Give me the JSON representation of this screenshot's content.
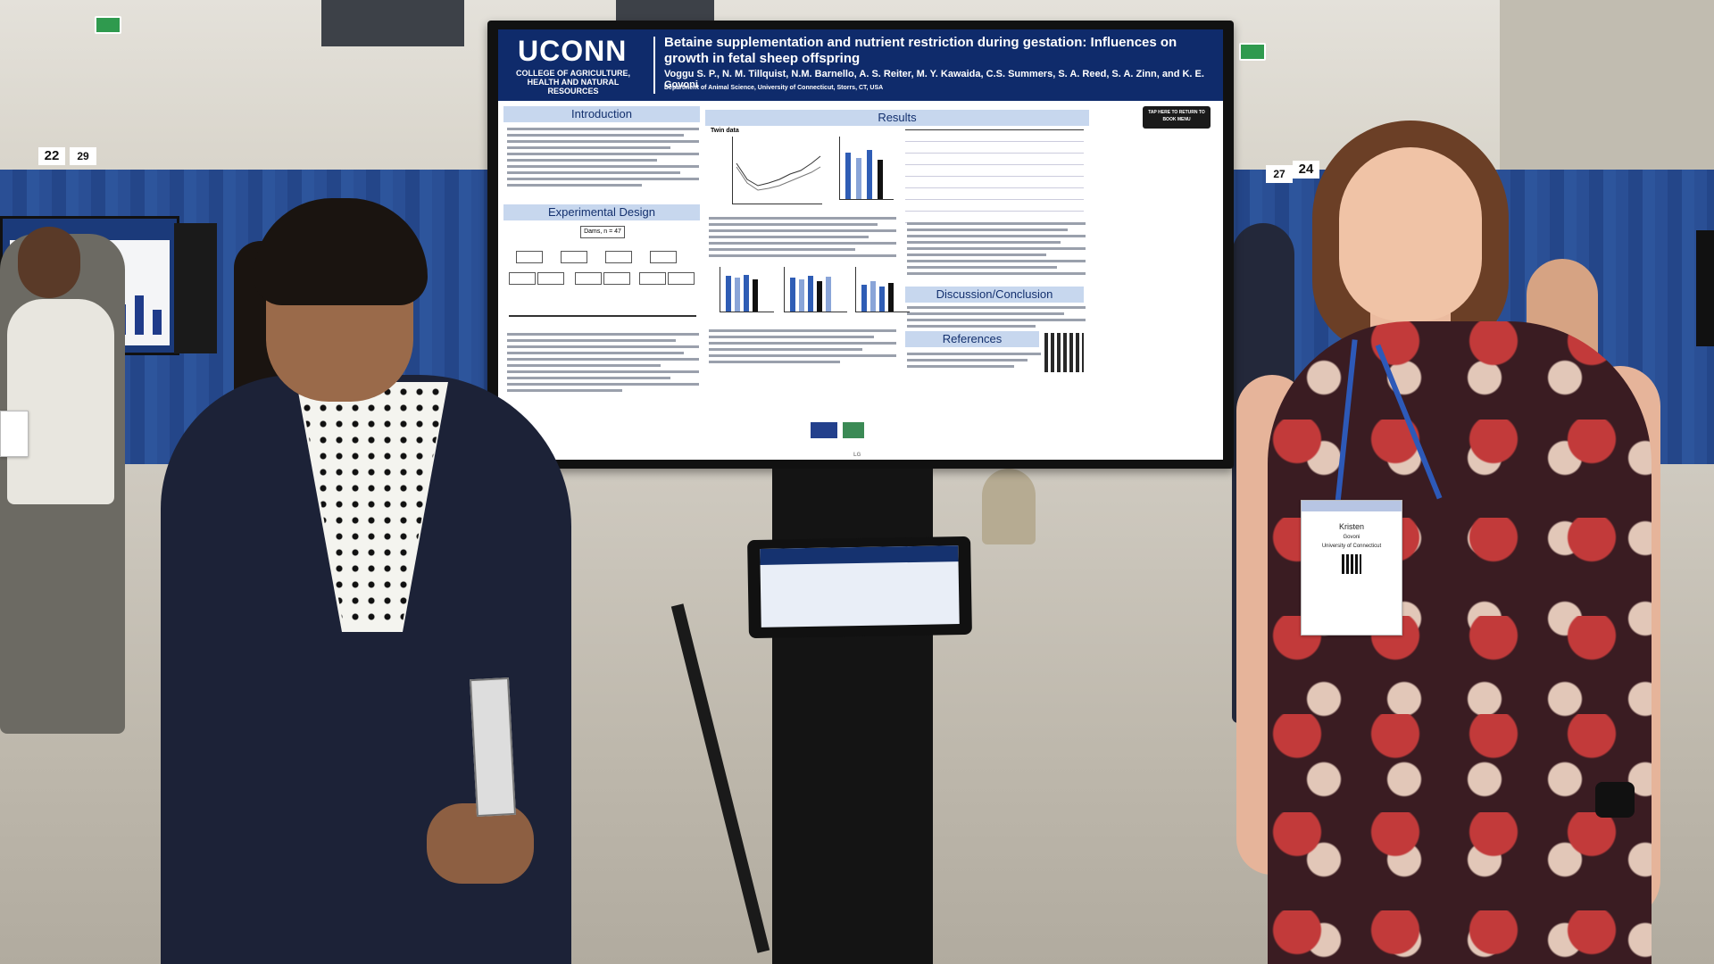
{
  "poster": {
    "logo": "UCONN",
    "college": "COLLEGE OF AGRICULTURE, HEALTH AND NATURAL RESOURCES",
    "title": "Betaine supplementation and nutrient restriction during gestation: Influences on growth in fetal sheep offspring",
    "authors": "Voggu S. P., N. M. Tillquist, N.M. Barnello, A. S. Reiter, M. Y. Kawaida, C.S. Summers, S. A. Reed, S. A. Zinn, and K. E. Govoni",
    "department": "Department of Animal Science, University of Connecticut, Storrs, CT, USA",
    "sections": {
      "introduction": "Introduction",
      "experimental_design": "Experimental Design",
      "results": "Results",
      "discussion": "Discussion/Conclusion",
      "references": "References"
    },
    "tap_button": "TAP HERE TO RETURN TO BOOK MENU",
    "twin_data_label": "Twin data",
    "dams_label": "Dams, n = 47"
  },
  "aisle_signs": [
    "22",
    "29",
    "27",
    "24"
  ],
  "badges": {
    "right_name": "Kristen",
    "right_surname": "Govoni",
    "right_affiliation": "University of Connecticut"
  },
  "monitor_brand": "LG",
  "colors": {
    "poster_header": "#0f2b6b",
    "section_header": "#c7d7ee",
    "drape": "#2a4f95"
  }
}
